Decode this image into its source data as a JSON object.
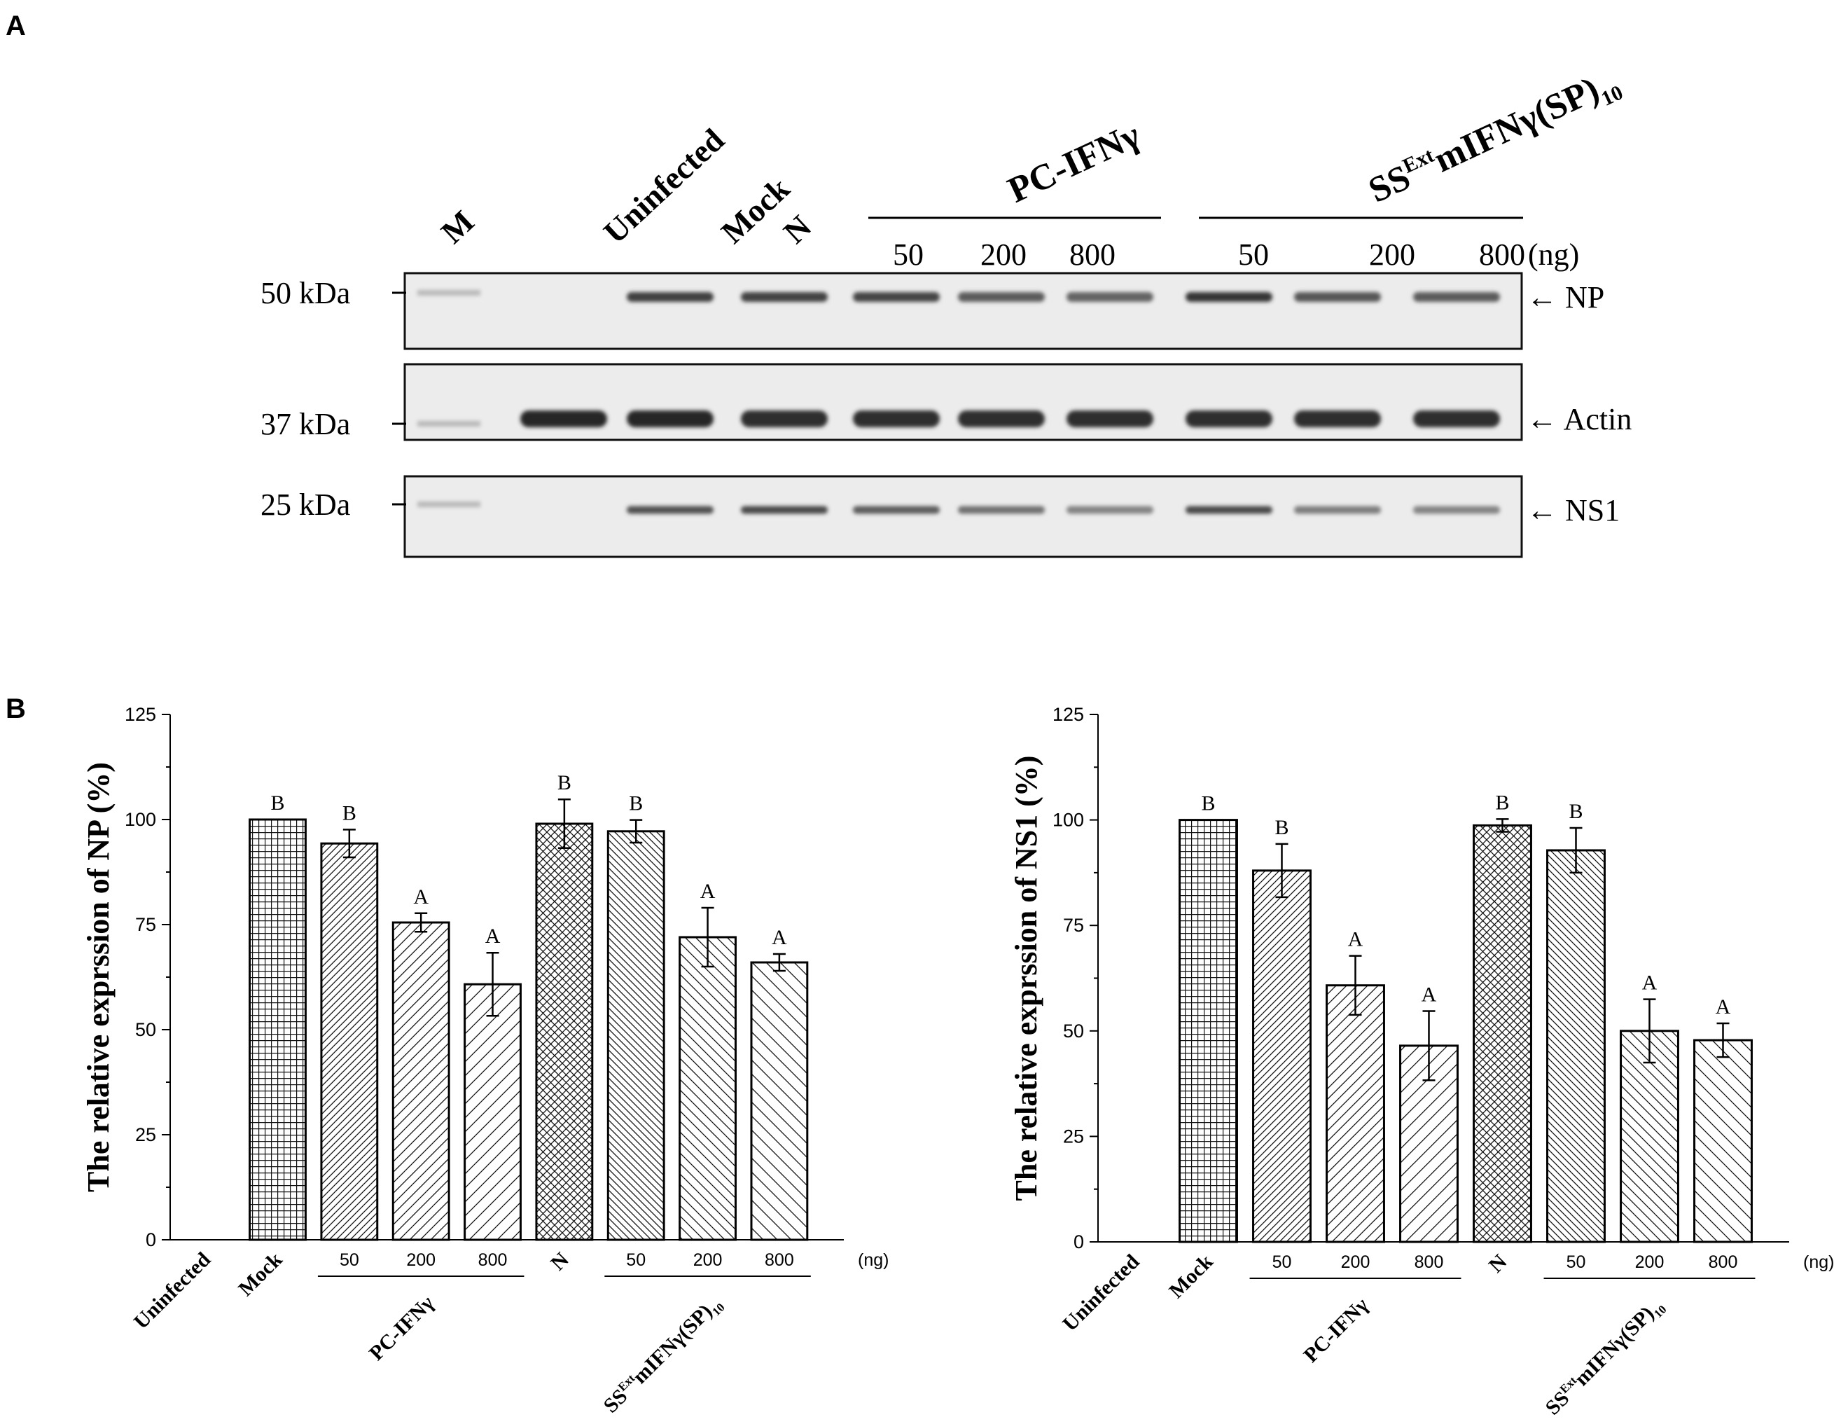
{
  "panel_a": {
    "letter": "A",
    "lanes": [
      "M",
      "Uninfected",
      "Mock",
      "N",
      "50",
      "200",
      "800",
      "50",
      "200",
      "800"
    ],
    "unit": "(ng)",
    "groups": [
      {
        "base": "PC-IFNγ",
        "sup": "",
        "tail": "",
        "sub": ""
      },
      {
        "base": "SS",
        "sup": "Ext",
        "tail": "mIFNγ(SP)",
        "sub": "10"
      }
    ],
    "blots": [
      {
        "marker": "50 kDa",
        "label": "NP"
      },
      {
        "marker": "37 kDa",
        "label": "Actin"
      },
      {
        "marker": "25 kDa",
        "label": "NS1"
      }
    ],
    "arrow": "←"
  },
  "panel_b": {
    "letter": "B"
  },
  "chart_data": [
    {
      "type": "bar",
      "title": "",
      "xlabel": "",
      "ylabel": "The relative exprssion of NP (%)",
      "ylim": [
        0,
        125
      ],
      "yticks": [
        "0",
        "25",
        "50",
        "75",
        "100",
        "125"
      ],
      "categories": [
        "Uninfected",
        "Mock",
        "50",
        "200",
        "800",
        "N",
        "50",
        "200",
        "800"
      ],
      "values": [
        0,
        100,
        94.3,
        75.5,
        60.8,
        99.0,
        97.2,
        72.0,
        66.0
      ],
      "errors": [
        0,
        0,
        3.3,
        2.2,
        7.5,
        5.8,
        2.7,
        7.0,
        2.0
      ],
      "significance": [
        "",
        "B",
        "B",
        "A",
        "A",
        "B",
        "B",
        "A",
        "A"
      ],
      "group_labels": [
        {
          "base": "PC-IFNγ",
          "sup": "",
          "tail": "",
          "sub": ""
        },
        {
          "base": "SS",
          "sup": "Ext",
          "tail": "mIFNγ(SP)",
          "sub": "10"
        }
      ],
      "unit_label": "(ng)",
      "legend": "none"
    },
    {
      "type": "bar",
      "title": "",
      "xlabel": "",
      "ylabel": "The relative exprssion of NS1 (%)",
      "ylim": [
        0,
        125
      ],
      "yticks": [
        "0",
        "25",
        "50",
        "75",
        "100",
        "125"
      ],
      "categories": [
        "Uninfected",
        "Mock",
        "50",
        "200",
        "800",
        "N",
        "50",
        "200",
        "800"
      ],
      "values": [
        0,
        100,
        88.0,
        60.8,
        46.5,
        98.7,
        92.8,
        50.0,
        47.8
      ],
      "errors": [
        0,
        0,
        6.3,
        7.0,
        8.2,
        1.5,
        5.3,
        7.5,
        4.0
      ],
      "significance": [
        "",
        "B",
        "B",
        "A",
        "A",
        "B",
        "B",
        "A",
        "A"
      ],
      "group_labels": [
        {
          "base": "PC-IFNγ",
          "sup": "",
          "tail": "",
          "sub": ""
        },
        {
          "base": "SS",
          "sup": "Ext",
          "tail": "mIFNγ(SP)",
          "sub": "10"
        }
      ],
      "unit_label": "(ng)",
      "legend": "none"
    }
  ]
}
